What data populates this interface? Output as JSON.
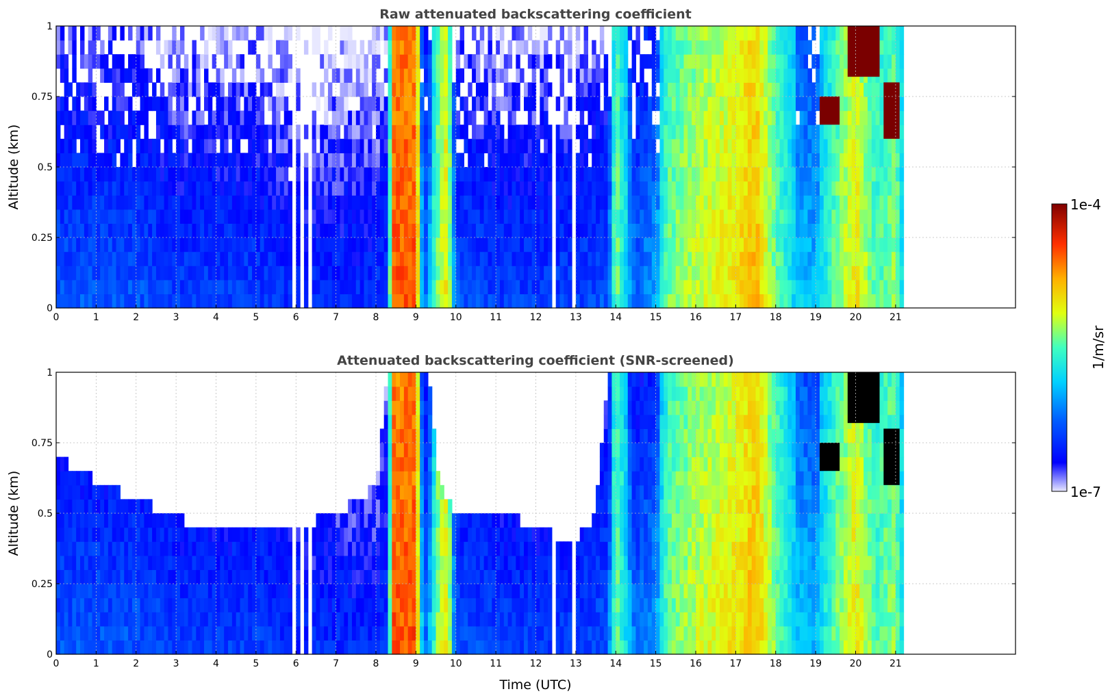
{
  "chart_data": [
    {
      "type": "heatmap",
      "title": "Raw attenuated backscattering coefficient",
      "xlabel": "",
      "ylabel": "Altitude (km)",
      "xlim": [
        0,
        24
      ],
      "ylim": [
        0,
        1
      ],
      "xticks": [
        0,
        1,
        2,
        3,
        4,
        5,
        6,
        7,
        8,
        9,
        10,
        11,
        12,
        13,
        14,
        15,
        16,
        17,
        18,
        19,
        20,
        21
      ],
      "yticks": [
        0,
        0.25,
        0.5,
        0.75,
        1
      ],
      "ytick_labels": [
        "0",
        "0.25",
        "0.5",
        "0.75",
        "1"
      ],
      "grid": true,
      "data_end_hour": 21.2,
      "screened": false,
      "colorscale": "jet-log",
      "gaps_hours": [
        [
          5.85,
          5.95
        ],
        [
          6.1,
          6.2
        ],
        [
          6.3,
          6.35
        ],
        [
          12.35,
          12.45
        ],
        [
          12.85,
          12.95
        ]
      ],
      "time_profile_log10": {
        "hours": [
          0,
          1,
          2,
          3,
          4,
          5,
          6,
          7,
          8,
          8.3,
          8.4,
          9.0,
          9.2,
          9.6,
          9.8,
          10.0,
          11,
          12,
          13,
          13.8,
          14.0,
          14.5,
          15,
          15.3,
          16,
          17,
          17.5,
          18,
          18.5,
          19,
          19.5,
          20,
          20.5,
          21,
          21.2
        ],
        "value": [
          -6.3,
          -6.3,
          -6.3,
          -6.4,
          -6.4,
          -6.4,
          -6.5,
          -6.5,
          -6.5,
          -6.4,
          -4.5,
          -4.5,
          -6.3,
          -5.2,
          -5.0,
          -6.3,
          -6.4,
          -6.4,
          -6.4,
          -6.3,
          -5.3,
          -6.2,
          -6.0,
          -5.4,
          -5.2,
          -5.0,
          -4.8,
          -5.4,
          -5.8,
          -5.9,
          -5.4,
          -5.0,
          -5.5,
          -5.3,
          -5.8
        ]
      },
      "dense_layers": [
        {
          "hours": [
            19.1,
            19.6
          ],
          "altitude_km": [
            0.65,
            0.75
          ],
          "value": "1e-4"
        },
        {
          "hours": [
            19.8,
            20.6
          ],
          "altitude_km": [
            0.82,
            1.0
          ],
          "value": "1e-4"
        },
        {
          "hours": [
            20.7,
            21.1
          ],
          "altitude_km": [
            0.6,
            0.8
          ],
          "value": "1e-4"
        }
      ]
    },
    {
      "type": "heatmap",
      "title": "Attenuated backscattering coefficient (SNR-screened)",
      "xlabel": "Time (UTC)",
      "ylabel": "Altitude (km)",
      "xlim": [
        0,
        24
      ],
      "ylim": [
        0,
        1
      ],
      "xticks": [
        0,
        1,
        2,
        3,
        4,
        5,
        6,
        7,
        8,
        9,
        10,
        11,
        12,
        13,
        14,
        15,
        16,
        17,
        18,
        19,
        20,
        21
      ],
      "yticks": [
        0,
        0.25,
        0.5,
        0.75,
        1
      ],
      "ytick_labels": [
        "0",
        "0.25",
        "0.5",
        "0.75",
        "1"
      ],
      "grid": true,
      "data_end_hour": 21.2,
      "screened": true,
      "colorscale": "jet-log",
      "gaps_hours": [
        [
          5.85,
          5.95
        ],
        [
          6.1,
          6.2
        ],
        [
          6.3,
          6.35
        ],
        [
          12.35,
          12.45
        ],
        [
          12.85,
          12.95
        ]
      ],
      "snr_top_km": {
        "hours": [
          0,
          1,
          2,
          3,
          4,
          5,
          6,
          7,
          7.5,
          8,
          8.3,
          9.3,
          9.6,
          10,
          11,
          11.5,
          12,
          13,
          13.5,
          13.8,
          15,
          21.2
        ],
        "value": [
          0.7,
          0.62,
          0.55,
          0.48,
          0.45,
          0.44,
          0.45,
          0.5,
          0.55,
          0.6,
          1.0,
          1.0,
          0.6,
          0.5,
          0.5,
          0.48,
          0.45,
          0.4,
          0.5,
          1.0,
          1.0,
          1.0
        ]
      },
      "dense_layers": [
        {
          "hours": [
            19.1,
            19.6
          ],
          "altitude_km": [
            0.65,
            0.75
          ],
          "value": "saturated"
        },
        {
          "hours": [
            19.8,
            20.6
          ],
          "altitude_km": [
            0.82,
            1.0
          ],
          "value": "saturated"
        },
        {
          "hours": [
            20.7,
            21.1
          ],
          "altitude_km": [
            0.6,
            0.8
          ],
          "value": "saturated"
        }
      ]
    }
  ],
  "colorbar": {
    "label": "1/m/sr",
    "min_label": "1e-7",
    "max_label": "1e-4",
    "min_log10": -7,
    "max_log10": -4
  }
}
